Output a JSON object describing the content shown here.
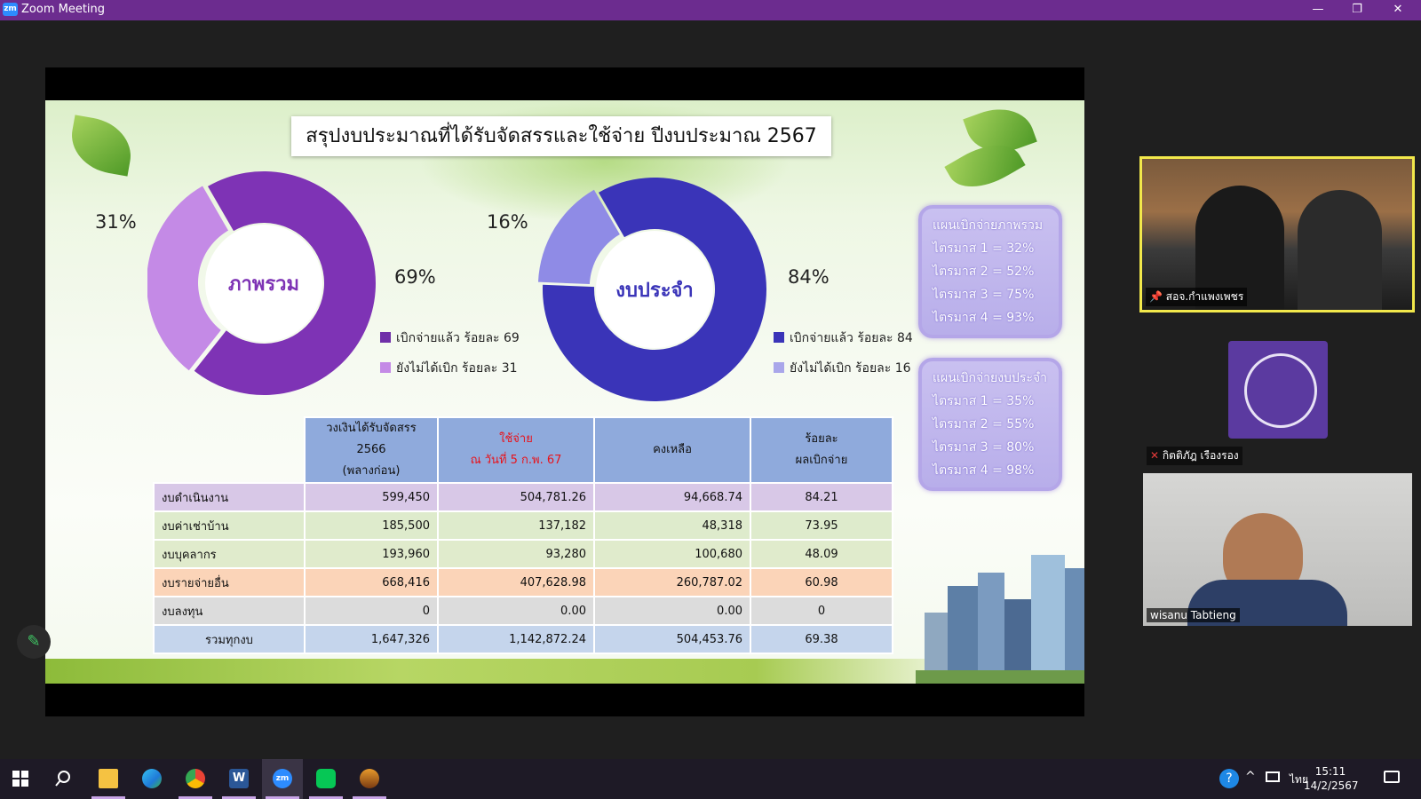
{
  "window": {
    "app_icon_text": "zm",
    "title": "Zoom Meeting",
    "minimize": "—",
    "restore": "❐",
    "close": "✕"
  },
  "slide": {
    "title": "สรุปงบประมาณที่ได้รับจัดสรรและใช้จ่าย  ปีงบประมาณ 2567",
    "donut1": {
      "center": "ภาพรวม",
      "pct_unspent": "31%",
      "pct_spent": "69%",
      "spent": 69,
      "unspent": 31,
      "legend_spent": "เบิกจ่ายแล้ว ร้อยละ 69",
      "legend_unspent": "ยังไม่ได้เบิก ร้อยละ 31",
      "color_spent": "#7e33b5",
      "color_unspent": "#c48ae6"
    },
    "donut2": {
      "center": "งบประจำ",
      "pct_unspent": "16%",
      "pct_spent": "84%",
      "spent": 84,
      "unspent": 16,
      "legend_spent": "เบิกจ่ายแล้ว ร้อยละ 84",
      "legend_unspent": "ยังไม่ได้เบิก ร้อยละ 16",
      "color_spent": "#3a34b8",
      "color_unspent": "#8f8be6"
    },
    "plan1": {
      "title": "แผนเบิกจ่ายภาพรวม",
      "lines": [
        "ไตรมาส 1 = 32%",
        "ไตรมาส 2 = 52%",
        "ไตรมาส 3 = 75%",
        "ไตรมาส 4 = 93%"
      ]
    },
    "plan2": {
      "title": "แผนเบิกจ่ายงบประจำ",
      "lines": [
        "ไตรมาส 1 = 35%",
        "ไตรมาส 2 = 55%",
        "ไตรมาส 3 = 80%",
        "ไตรมาส 4 = 98%"
      ]
    },
    "table": {
      "headers": [
        {
          "l1": "วงเงินได้รับจัดสรร 2566",
          "l2": "(พลางก่อน)"
        },
        {
          "l1": "ใช้จ่าย",
          "l2": "ณ วันที่ 5 ก.พ. 67"
        },
        {
          "l1": "คงเหลือ",
          "l2": ""
        },
        {
          "l1": "ร้อยละ",
          "l2": "ผลเบิกจ่าย"
        }
      ],
      "rows": [
        {
          "name": "งบดำเนินงาน",
          "alloc": "599,450",
          "spent": "504,781.26",
          "remain": "94,668.74",
          "pct": "84.21"
        },
        {
          "name": "งบค่าเช่าบ้าน",
          "alloc": "185,500",
          "spent": "137,182",
          "remain": "48,318",
          "pct": "73.95"
        },
        {
          "name": "งบบุคลากร",
          "alloc": "193,960",
          "spent": "93,280",
          "remain": "100,680",
          "pct": "48.09"
        },
        {
          "name": "งบรายจ่ายอื่น",
          "alloc": "668,416",
          "spent": "407,628.98",
          "remain": "260,787.02",
          "pct": "60.98"
        },
        {
          "name": "งบลงทุน",
          "alloc": "0",
          "spent": "0.00",
          "remain": "0.00",
          "pct": "0"
        },
        {
          "name": "รวมทุกงบ",
          "alloc": "1,647,326",
          "spent": "1,142,872.24",
          "remain": "504,453.76",
          "pct": "69.38"
        }
      ]
    }
  },
  "participants": [
    {
      "name": "สอจ.กำแพงเพชร"
    },
    {
      "name": "กิตติภัฎ เรืองรอง"
    },
    {
      "name": "wisanu Tabtieng"
    }
  ],
  "taskbar": {
    "time": "15:11",
    "date": "14/2/2567",
    "lang": "ไทย"
  }
}
